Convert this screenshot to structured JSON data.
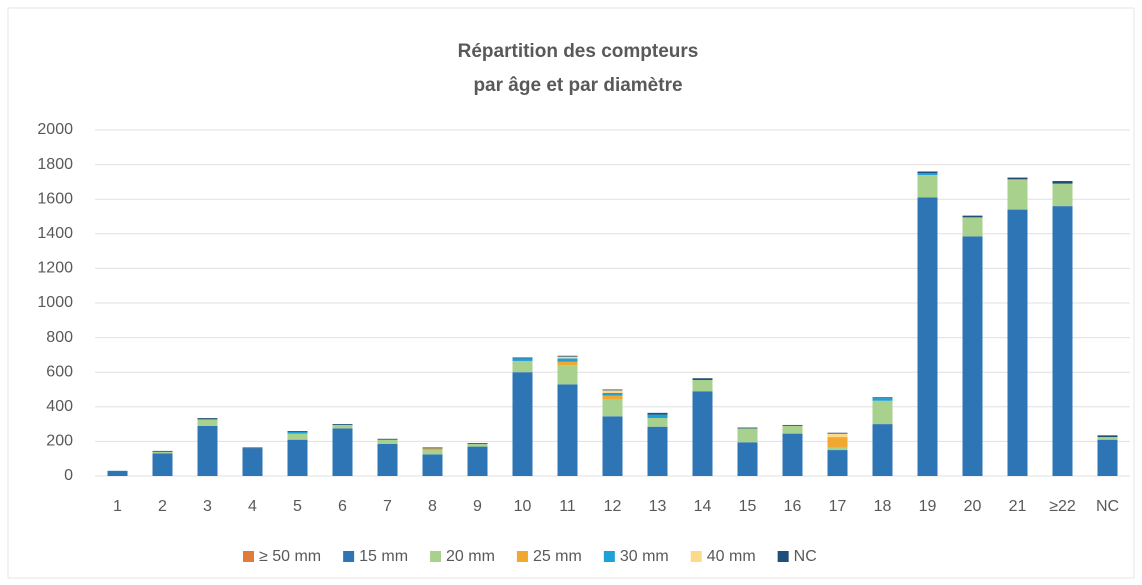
{
  "chart_data": {
    "type": "stacked-bar",
    "title": [
      "Répartition des compteurs",
      "par âge et par diamètre"
    ],
    "categories": [
      "1",
      "2",
      "3",
      "4",
      "5",
      "6",
      "7",
      "8",
      "9",
      "10",
      "11",
      "12",
      "13",
      "14",
      "15",
      "16",
      "17",
      "18",
      "19",
      "20",
      "21",
      "≥22",
      "NC"
    ],
    "series": [
      {
        "name": "≥ 50 mm",
        "color": "#e07b39",
        "values": [
          0,
          0,
          0,
          0,
          0,
          0,
          0,
          0,
          0,
          0,
          0,
          0,
          0,
          0,
          0,
          0,
          0,
          0,
          0,
          0,
          0,
          0,
          0
        ]
      },
      {
        "name": "15 mm",
        "color": "#2e75b6",
        "values": [
          30,
          130,
          290,
          160,
          210,
          275,
          185,
          125,
          170,
          600,
          530,
          345,
          285,
          490,
          195,
          245,
          150,
          300,
          1610,
          1385,
          1540,
          1560,
          210
        ]
      },
      {
        "name": "20 mm",
        "color": "#a9d18e",
        "values": [
          0,
          10,
          35,
          0,
          35,
          20,
          25,
          25,
          15,
          65,
          110,
          100,
          50,
          65,
          80,
          45,
          15,
          135,
          130,
          110,
          170,
          130,
          15
        ]
      },
      {
        "name": "25 mm",
        "color": "#f0a830",
        "values": [
          0,
          0,
          0,
          0,
          0,
          0,
          0,
          10,
          0,
          0,
          20,
          20,
          0,
          0,
          0,
          0,
          60,
          0,
          0,
          0,
          5,
          0,
          0
        ]
      },
      {
        "name": "30 mm",
        "color": "#1ea0d8",
        "values": [
          0,
          0,
          5,
          0,
          10,
          0,
          0,
          0,
          0,
          15,
          20,
          15,
          20,
          0,
          0,
          0,
          0,
          15,
          10,
          0,
          0,
          0,
          0
        ]
      },
      {
        "name": "40 mm",
        "color": "#ffd98a",
        "values": [
          0,
          0,
          0,
          0,
          0,
          0,
          0,
          0,
          0,
          0,
          10,
          15,
          0,
          0,
          0,
          0,
          20,
          0,
          0,
          0,
          0,
          0,
          0
        ]
      },
      {
        "name": "NC",
        "color": "#1f4e79",
        "values": [
          0,
          5,
          5,
          5,
          5,
          5,
          5,
          5,
          5,
          5,
          5,
          5,
          10,
          10,
          5,
          5,
          5,
          5,
          10,
          10,
          10,
          15,
          10
        ]
      }
    ],
    "ylim": [
      0,
      2000
    ],
    "yticks": [
      0,
      200,
      400,
      600,
      800,
      1000,
      1200,
      1400,
      1600,
      1800,
      2000
    ],
    "grid": true
  }
}
